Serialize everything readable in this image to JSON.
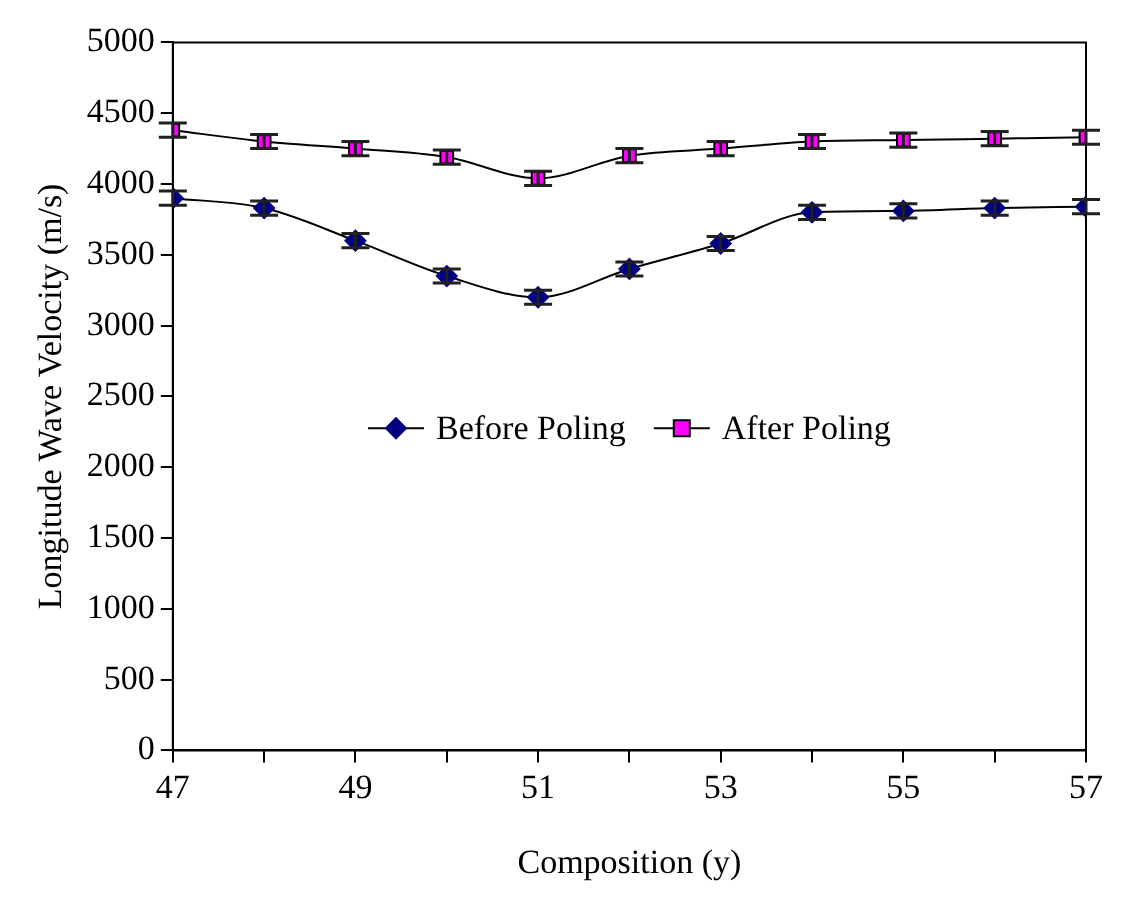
{
  "chart_data": {
    "type": "line",
    "xlabel": "Composition (y)",
    "ylabel": "Longitude Wave Velocity (m/s)",
    "x": [
      47,
      48,
      49,
      50,
      51,
      52,
      53,
      54,
      55,
      56,
      57
    ],
    "series": [
      {
        "name": "Before Poling",
        "color": "#000080",
        "marker": "diamond",
        "values": [
          3900,
          3830,
          3600,
          3350,
          3200,
          3400,
          3580,
          3800,
          3810,
          3830,
          3840
        ],
        "errors": [
          50,
          50,
          50,
          50,
          50,
          50,
          50,
          50,
          50,
          50,
          50
        ]
      },
      {
        "name": "After Poling",
        "color": "#ff00ff",
        "marker": "square",
        "values": [
          4380,
          4300,
          4250,
          4190,
          4040,
          4200,
          4250,
          4300,
          4310,
          4320,
          4330
        ],
        "errors": [
          50,
          50,
          50,
          50,
          50,
          50,
          50,
          50,
          50,
          50,
          50
        ]
      }
    ],
    "xlim": [
      47,
      57
    ],
    "xticks": [
      47,
      {
        "value": 48,
        "label": null
      },
      49,
      {
        "value": 50,
        "label": null
      },
      51,
      {
        "value": 52,
        "label": null
      },
      53,
      {
        "value": 54,
        "label": null
      },
      55,
      {
        "value": 56,
        "label": null
      },
      57
    ],
    "ylim": [
      0,
      5000
    ],
    "yticks": [
      0,
      500,
      1000,
      1500,
      2000,
      2500,
      3000,
      3500,
      4000,
      4500,
      5000
    ],
    "grid": false,
    "legend": "center"
  }
}
